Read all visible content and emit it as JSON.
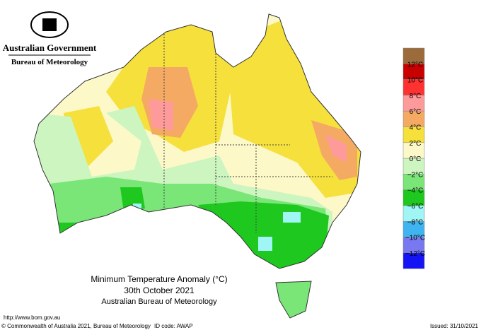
{
  "header": {
    "agency": "Australian Government",
    "bureau": "Bureau of Meteorology"
  },
  "title": {
    "line1": "Minimum Temperature Anomaly (°C)",
    "line2": "30th October 2021",
    "line3": "Australian Bureau of Meteorology"
  },
  "legend": {
    "colors": [
      "#9b6b3c",
      "#c80000",
      "#ff3232",
      "#ff9a9a",
      "#f5aa64",
      "#f5e03c",
      "#fcf8c8",
      "#ccf5c0",
      "#7ae678",
      "#1ec81e",
      "#a0f5f5",
      "#40b4f0",
      "#7878f0",
      "#1414f5"
    ],
    "labels": [
      "12°C",
      "10°C",
      "8°C",
      "6°C",
      "4°C",
      "2°C",
      "0°C",
      "−2°C",
      "−4°C",
      "−6°C",
      "−8°C",
      "−10°C",
      "−12°C"
    ]
  },
  "footer": {
    "url": "http://www.bom.gov.au",
    "copyright": "© Commonwealth of Australia 2021, Bureau of Meteorology",
    "id_code": "ID code: AWAP",
    "issued": "Issued: 31/10/2021"
  }
}
